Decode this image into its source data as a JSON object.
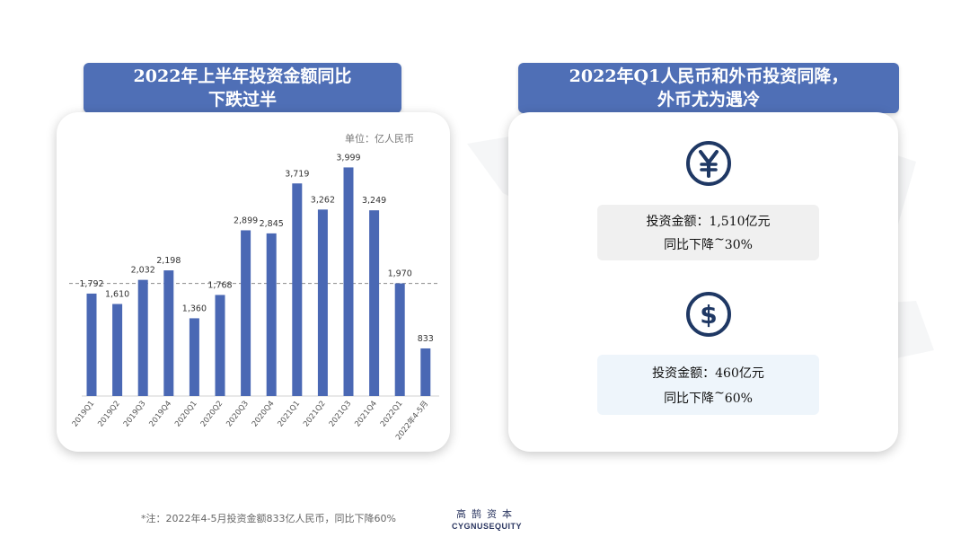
{
  "left_title": {
    "line1": "2022年上半年投资金额同比",
    "line2": "下跌过半"
  },
  "right_title": {
    "line1": "2022年Q1人民币和外币投资同降，",
    "line2": "外币尤为遇冷"
  },
  "colors": {
    "accent": "#4f6fb6",
    "bar": "#4a68b4",
    "icon": "#1f3864"
  },
  "chart_data": {
    "type": "bar",
    "unit_label": "单位：亿人民币",
    "categories": [
      "2019Q1",
      "2019Q2",
      "2019Q3",
      "2019Q4",
      "2020Q1",
      "2020Q2",
      "2020Q3",
      "2020Q4",
      "2021Q1",
      "2021Q2",
      "2021Q3",
      "2021Q4",
      "2022Q1",
      "2022年4-5月"
    ],
    "values": [
      1792,
      1610,
      2032,
      2198,
      1360,
      1768,
      2899,
      2845,
      3719,
      3262,
      3999,
      3249,
      1970,
      833
    ],
    "value_labels": [
      "1,792",
      "1,610",
      "2,032",
      "2,198",
      "1,360",
      "1,768",
      "2,899",
      "2,845",
      "3,719",
      "3,262",
      "3,999",
      "3,249",
      "1,970",
      "833"
    ],
    "ylim": [
      0,
      4100
    ],
    "reference_line": 1970
  },
  "rmb": {
    "icon": "yuan-icon",
    "line1": "投资金额：1,510亿元",
    "line2_prefix": "同比下降",
    "tilde": "~",
    "line2_value": "30%"
  },
  "usd": {
    "icon": "dollar-icon",
    "line1": "投资金额：460亿元",
    "line2_prefix": "同比下降",
    "tilde": "~",
    "line2_value": "60%"
  },
  "footnote": "*注：2022年4-5月投资金额833亿人民币，同比下降60%",
  "logo": {
    "cn": "高鹄资本",
    "en": "CYGNUSEQUITY"
  }
}
